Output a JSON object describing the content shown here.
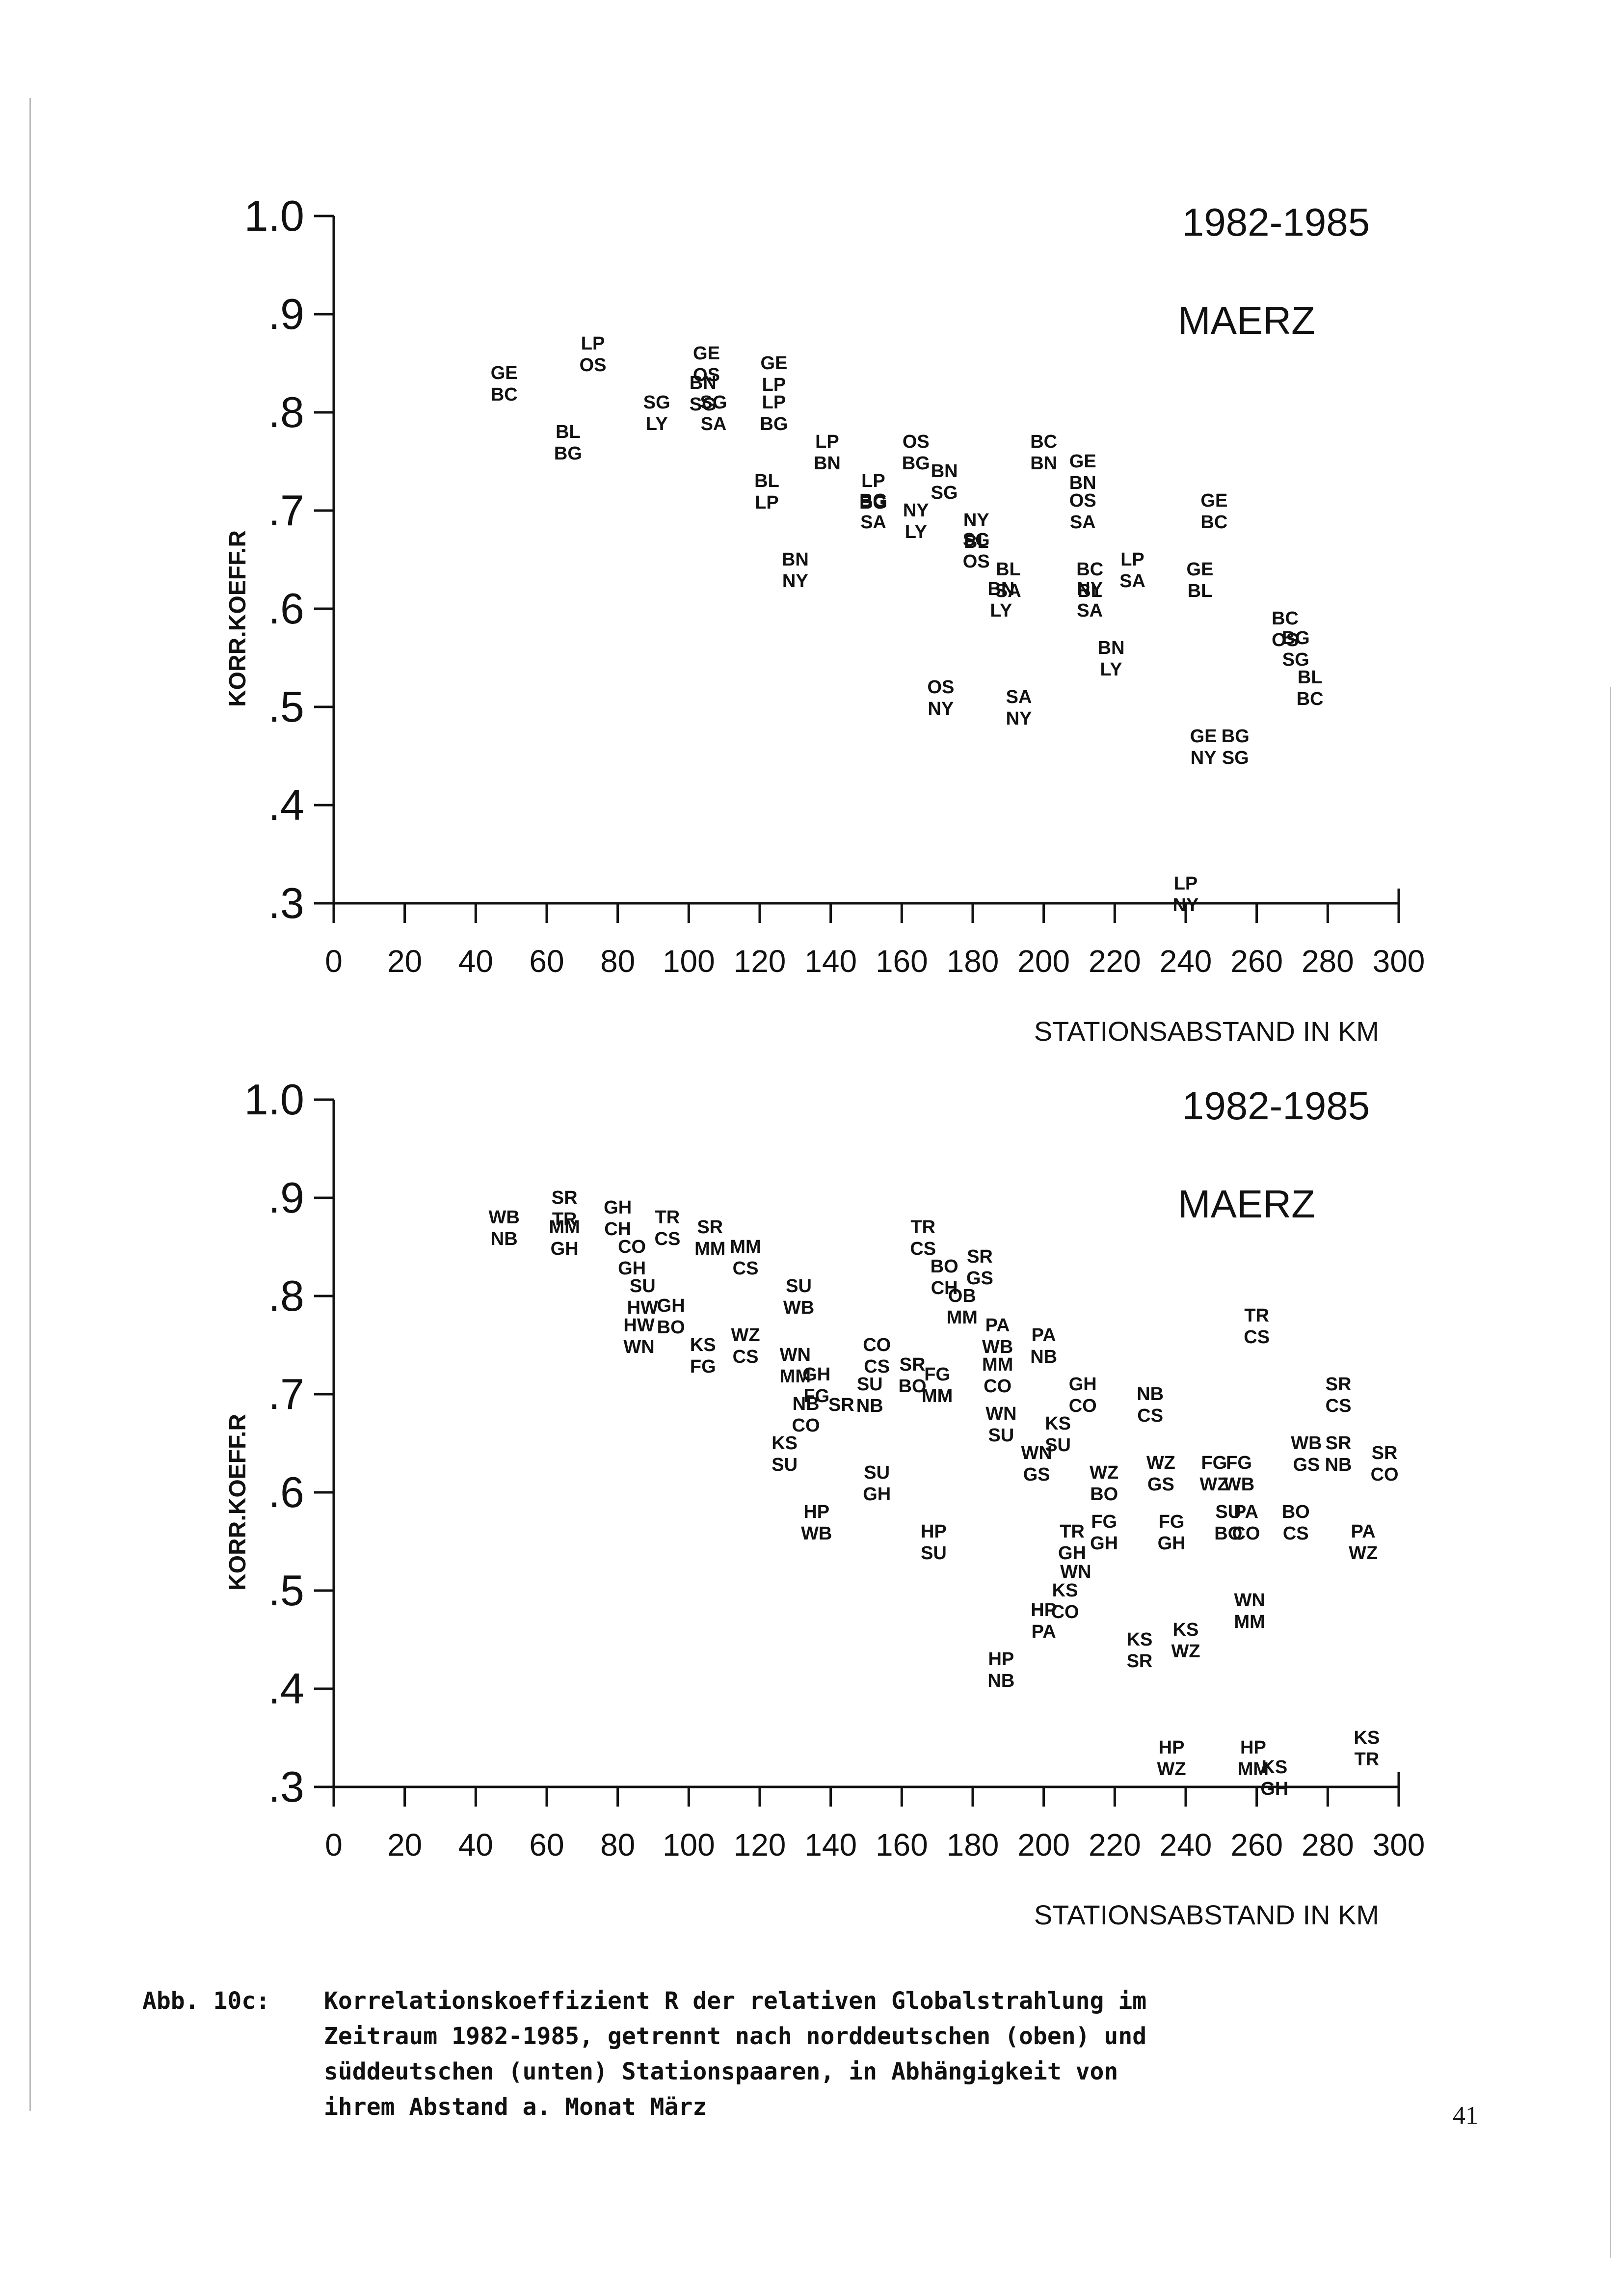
{
  "caption": {
    "prefix": "Abb. 10c:",
    "body": "Korrelationskoeffizient R der relativen Globalstrahlung im\nZeitraum 1982-1985, getrennt nach norddeutschen (oben) und\nsüddeutschen (unten) Stationspaaren, in Abhängigkeit von\nihrem Abstand a.  Monat März"
  },
  "page_number": "41",
  "chart_data": [
    {
      "type": "scatter",
      "period_label": "1982-1985",
      "month_label": "MAERZ",
      "xlabel": "STATIONSABSTAND IN KM",
      "ylabel": "KORR.KOEFF.R",
      "xlim": [
        0,
        300
      ],
      "ylim": [
        0.3,
        1.0
      ],
      "xticks": [
        0,
        20,
        40,
        60,
        80,
        100,
        120,
        140,
        160,
        180,
        200,
        220,
        240,
        260,
        280,
        300
      ],
      "yticks": [
        ".3",
        ".4",
        ".5",
        ".6",
        ".7",
        ".8",
        ".9",
        "1.0"
      ],
      "yticks_values": [
        0.3,
        0.4,
        0.5,
        0.6,
        0.7,
        0.8,
        0.9,
        1.0
      ],
      "points": [
        {
          "label": "GE BC",
          "x": 48,
          "y": 0.83
        },
        {
          "label": "LP OS",
          "x": 73,
          "y": 0.86
        },
        {
          "label": "BL BG",
          "x": 66,
          "y": 0.77
        },
        {
          "label": "SG LY",
          "x": 91,
          "y": 0.8
        },
        {
          "label": "GE OS",
          "x": 105,
          "y": 0.85
        },
        {
          "label": "BN SG",
          "x": 104,
          "y": 0.82
        },
        {
          "label": "SG SA",
          "x": 107,
          "y": 0.8
        },
        {
          "label": "GE LP",
          "x": 124,
          "y": 0.84
        },
        {
          "label": "LP BG",
          "x": 124,
          "y": 0.8
        },
        {
          "label": "BL LP",
          "x": 122,
          "y": 0.72
        },
        {
          "label": "LP BN",
          "x": 139,
          "y": 0.76
        },
        {
          "label": "LP BG",
          "x": 152,
          "y": 0.72
        },
        {
          "label": "BG SA",
          "x": 152,
          "y": 0.7
        },
        {
          "label": "OS BG",
          "x": 164,
          "y": 0.76
        },
        {
          "label": "BN SG",
          "x": 172,
          "y": 0.73
        },
        {
          "label": "NY LY",
          "x": 164,
          "y": 0.69
        },
        {
          "label": "BN NY",
          "x": 130,
          "y": 0.64
        },
        {
          "label": "BC BN",
          "x": 200,
          "y": 0.76
        },
        {
          "label": "GE BN",
          "x": 211,
          "y": 0.74
        },
        {
          "label": "OS SA",
          "x": 211,
          "y": 0.7
        },
        {
          "label": "GE BC",
          "x": 248,
          "y": 0.7
        },
        {
          "label": "NY BL",
          "x": 181,
          "y": 0.68
        },
        {
          "label": "SG OS",
          "x": 181,
          "y": 0.66
        },
        {
          "label": "BL SA",
          "x": 190,
          "y": 0.63
        },
        {
          "label": "BN LY",
          "x": 188,
          "y": 0.61
        },
        {
          "label": "BC BL",
          "x": 213,
          "y": 0.63
        },
        {
          "label": "NY SA",
          "x": 213,
          "y": 0.61
        },
        {
          "label": "LP SA",
          "x": 225,
          "y": 0.64
        },
        {
          "label": "GE BL",
          "x": 244,
          "y": 0.63
        },
        {
          "label": "BN LY",
          "x": 219,
          "y": 0.55
        },
        {
          "label": "OS NY",
          "x": 171,
          "y": 0.51
        },
        {
          "label": "SA NY",
          "x": 193,
          "y": 0.5
        },
        {
          "label": "GE NY",
          "x": 245,
          "y": 0.46
        },
        {
          "label": "BG SG",
          "x": 254,
          "y": 0.46
        },
        {
          "label": "BC OS",
          "x": 268,
          "y": 0.58
        },
        {
          "label": "BG SG",
          "x": 271,
          "y": 0.56
        },
        {
          "label": "BL BC",
          "x": 275,
          "y": 0.52
        },
        {
          "label": "LP NY",
          "x": 240,
          "y": 0.31
        }
      ]
    },
    {
      "type": "scatter",
      "period_label": "1982-1985",
      "month_label": "MAERZ",
      "xlabel": "STATIONSABSTAND IN KM",
      "ylabel": "KORR.KOEFF.R",
      "xlim": [
        0,
        300
      ],
      "ylim": [
        0.3,
        1.0
      ],
      "xticks": [
        0,
        20,
        40,
        60,
        80,
        100,
        120,
        140,
        160,
        180,
        200,
        220,
        240,
        260,
        280,
        300
      ],
      "yticks": [
        ".3",
        ".4",
        ".5",
        ".6",
        ".7",
        ".8",
        ".9",
        "1.0"
      ],
      "yticks_values": [
        0.3,
        0.4,
        0.5,
        0.6,
        0.7,
        0.8,
        0.9,
        1.0
      ],
      "points": [
        {
          "label": "WB NB",
          "x": 48,
          "y": 0.87
        },
        {
          "label": "SR TR",
          "x": 65,
          "y": 0.89
        },
        {
          "label": "MM GH",
          "x": 65,
          "y": 0.86
        },
        {
          "label": "GH CH",
          "x": 80,
          "y": 0.88
        },
        {
          "label": "CO GH",
          "x": 84,
          "y": 0.84
        },
        {
          "label": "TR CS",
          "x": 94,
          "y": 0.87
        },
        {
          "label": "SR MM",
          "x": 106,
          "y": 0.86
        },
        {
          "label": "MM CS",
          "x": 116,
          "y": 0.84
        },
        {
          "label": "SU HW",
          "x": 87,
          "y": 0.8
        },
        {
          "label": "HW WN",
          "x": 86,
          "y": 0.76
        },
        {
          "label": "GH BO",
          "x": 95,
          "y": 0.78
        },
        {
          "label": "KS FG",
          "x": 104,
          "y": 0.74
        },
        {
          "label": "WZ CS",
          "x": 116,
          "y": 0.75
        },
        {
          "label": "SU WB",
          "x": 131,
          "y": 0.8
        },
        {
          "label": "WN MM",
          "x": 130,
          "y": 0.73
        },
        {
          "label": "GH FG",
          "x": 136,
          "y": 0.71
        },
        {
          "label": "NB CO",
          "x": 133,
          "y": 0.68
        },
        {
          "label": "SR",
          "x": 143,
          "y": 0.69
        },
        {
          "label": "KS SU",
          "x": 127,
          "y": 0.64
        },
        {
          "label": "HP WB",
          "x": 136,
          "y": 0.57
        },
        {
          "label": "CO CS",
          "x": 153,
          "y": 0.74
        },
        {
          "label": "SU NB",
          "x": 151,
          "y": 0.7
        },
        {
          "label": "SR BO",
          "x": 163,
          "y": 0.72
        },
        {
          "label": "FG MM",
          "x": 170,
          "y": 0.71
        },
        {
          "label": "SU GH",
          "x": 153,
          "y": 0.61
        },
        {
          "label": "TR CS",
          "x": 166,
          "y": 0.86
        },
        {
          "label": "BO CH",
          "x": 172,
          "y": 0.82
        },
        {
          "label": "SR GS",
          "x": 182,
          "y": 0.83
        },
        {
          "label": "OB MM",
          "x": 177,
          "y": 0.79
        },
        {
          "label": "PA WB",
          "x": 187,
          "y": 0.76
        },
        {
          "label": "PA NB",
          "x": 200,
          "y": 0.75
        },
        {
          "label": "MM CO",
          "x": 187,
          "y": 0.72
        },
        {
          "label": "WN SU",
          "x": 188,
          "y": 0.67
        },
        {
          "label": "HP SU",
          "x": 169,
          "y": 0.55
        },
        {
          "label": "GH CO",
          "x": 211,
          "y": 0.7
        },
        {
          "label": "KS SU",
          "x": 204,
          "y": 0.66
        },
        {
          "label": "WN GS",
          "x": 198,
          "y": 0.63
        },
        {
          "label": "WZ BO",
          "x": 217,
          "y": 0.61
        },
        {
          "label": "FG GH",
          "x": 217,
          "y": 0.56
        },
        {
          "label": "TR GH",
          "x": 208,
          "y": 0.55
        },
        {
          "label": "WN",
          "x": 209,
          "y": 0.52
        },
        {
          "label": "KS CO",
          "x": 206,
          "y": 0.49
        },
        {
          "label": "HP PA",
          "x": 200,
          "y": 0.47
        },
        {
          "label": "HP NB",
          "x": 188,
          "y": 0.42
        },
        {
          "label": "NB CS",
          "x": 230,
          "y": 0.69
        },
        {
          "label": "WZ GS",
          "x": 233,
          "y": 0.62
        },
        {
          "label": "FG GH",
          "x": 236,
          "y": 0.56
        },
        {
          "label": "FG WZ",
          "x": 248,
          "y": 0.62
        },
        {
          "label": "FG WB",
          "x": 255,
          "y": 0.62
        },
        {
          "label": "SU BO",
          "x": 252,
          "y": 0.57
        },
        {
          "label": "PA CO",
          "x": 257,
          "y": 0.57
        },
        {
          "label": "KS SR",
          "x": 227,
          "y": 0.44
        },
        {
          "label": "KS WZ",
          "x": 240,
          "y": 0.45
        },
        {
          "label": "WN MM",
          "x": 258,
          "y": 0.48
        },
        {
          "label": "TR CS",
          "x": 260,
          "y": 0.77
        },
        {
          "label": "HP WZ",
          "x": 236,
          "y": 0.33
        },
        {
          "label": "HP MM",
          "x": 259,
          "y": 0.33
        },
        {
          "label": "KS GH",
          "x": 265,
          "y": 0.31
        },
        {
          "label": "SR CS",
          "x": 283,
          "y": 0.7
        },
        {
          "label": "WB GS",
          "x": 274,
          "y": 0.64
        },
        {
          "label": "SR NB",
          "x": 283,
          "y": 0.64
        },
        {
          "label": "SR CO",
          "x": 296,
          "y": 0.63
        },
        {
          "label": "BO CS",
          "x": 271,
          "y": 0.57
        },
        {
          "label": "PA WZ",
          "x": 290,
          "y": 0.55
        },
        {
          "label": "KS TR",
          "x": 291,
          "y": 0.34
        }
      ]
    }
  ]
}
